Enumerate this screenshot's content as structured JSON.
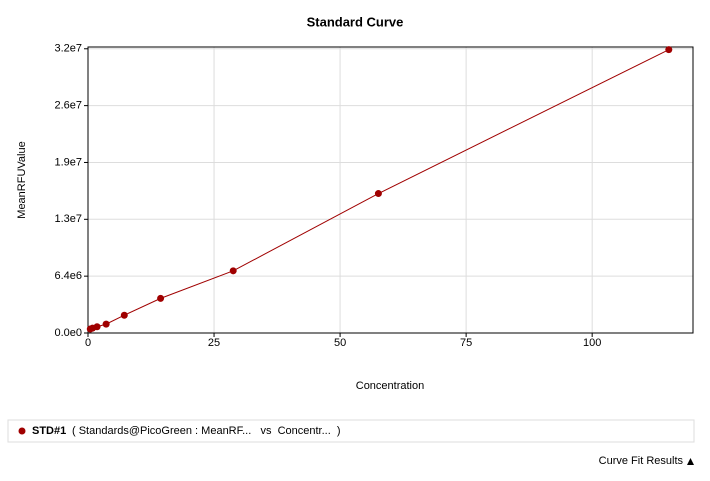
{
  "chart_data": {
    "type": "line",
    "title": "Standard Curve",
    "x_label": "Concentration",
    "y_label": "MeanRFUValue",
    "x": [
      0.45,
      0.9,
      1.8,
      3.6,
      7.2,
      14.4,
      28.8,
      57.6,
      115.2
    ],
    "series": [
      {
        "name": "STD#1",
        "color": "#a00000",
        "values": [
          450000,
          550000,
          700000,
          1000000,
          2000000,
          3900000,
          7000000,
          15700000,
          31900000
        ]
      }
    ],
    "legend_text": "( Standards@PicoGreen : MeanRF...   vs  Concentr...  )",
    "xlim": [
      0,
      120
    ],
    "xticks": [
      0,
      25,
      50,
      75,
      100
    ],
    "ylim": [
      0,
      32200000
    ],
    "yticks": [
      {
        "value": 0,
        "label": "0.0e0"
      },
      {
        "value": 6400000,
        "label": "6.4e6"
      },
      {
        "value": 12800000,
        "label": "1.3e7"
      },
      {
        "value": 19200000,
        "label": "1.9e7"
      },
      {
        "value": 25600000,
        "label": "2.6e7"
      },
      {
        "value": 32000000,
        "label": "3.2e7"
      }
    ],
    "grid": true
  },
  "footer": {
    "button": "Curve Fit Results"
  }
}
